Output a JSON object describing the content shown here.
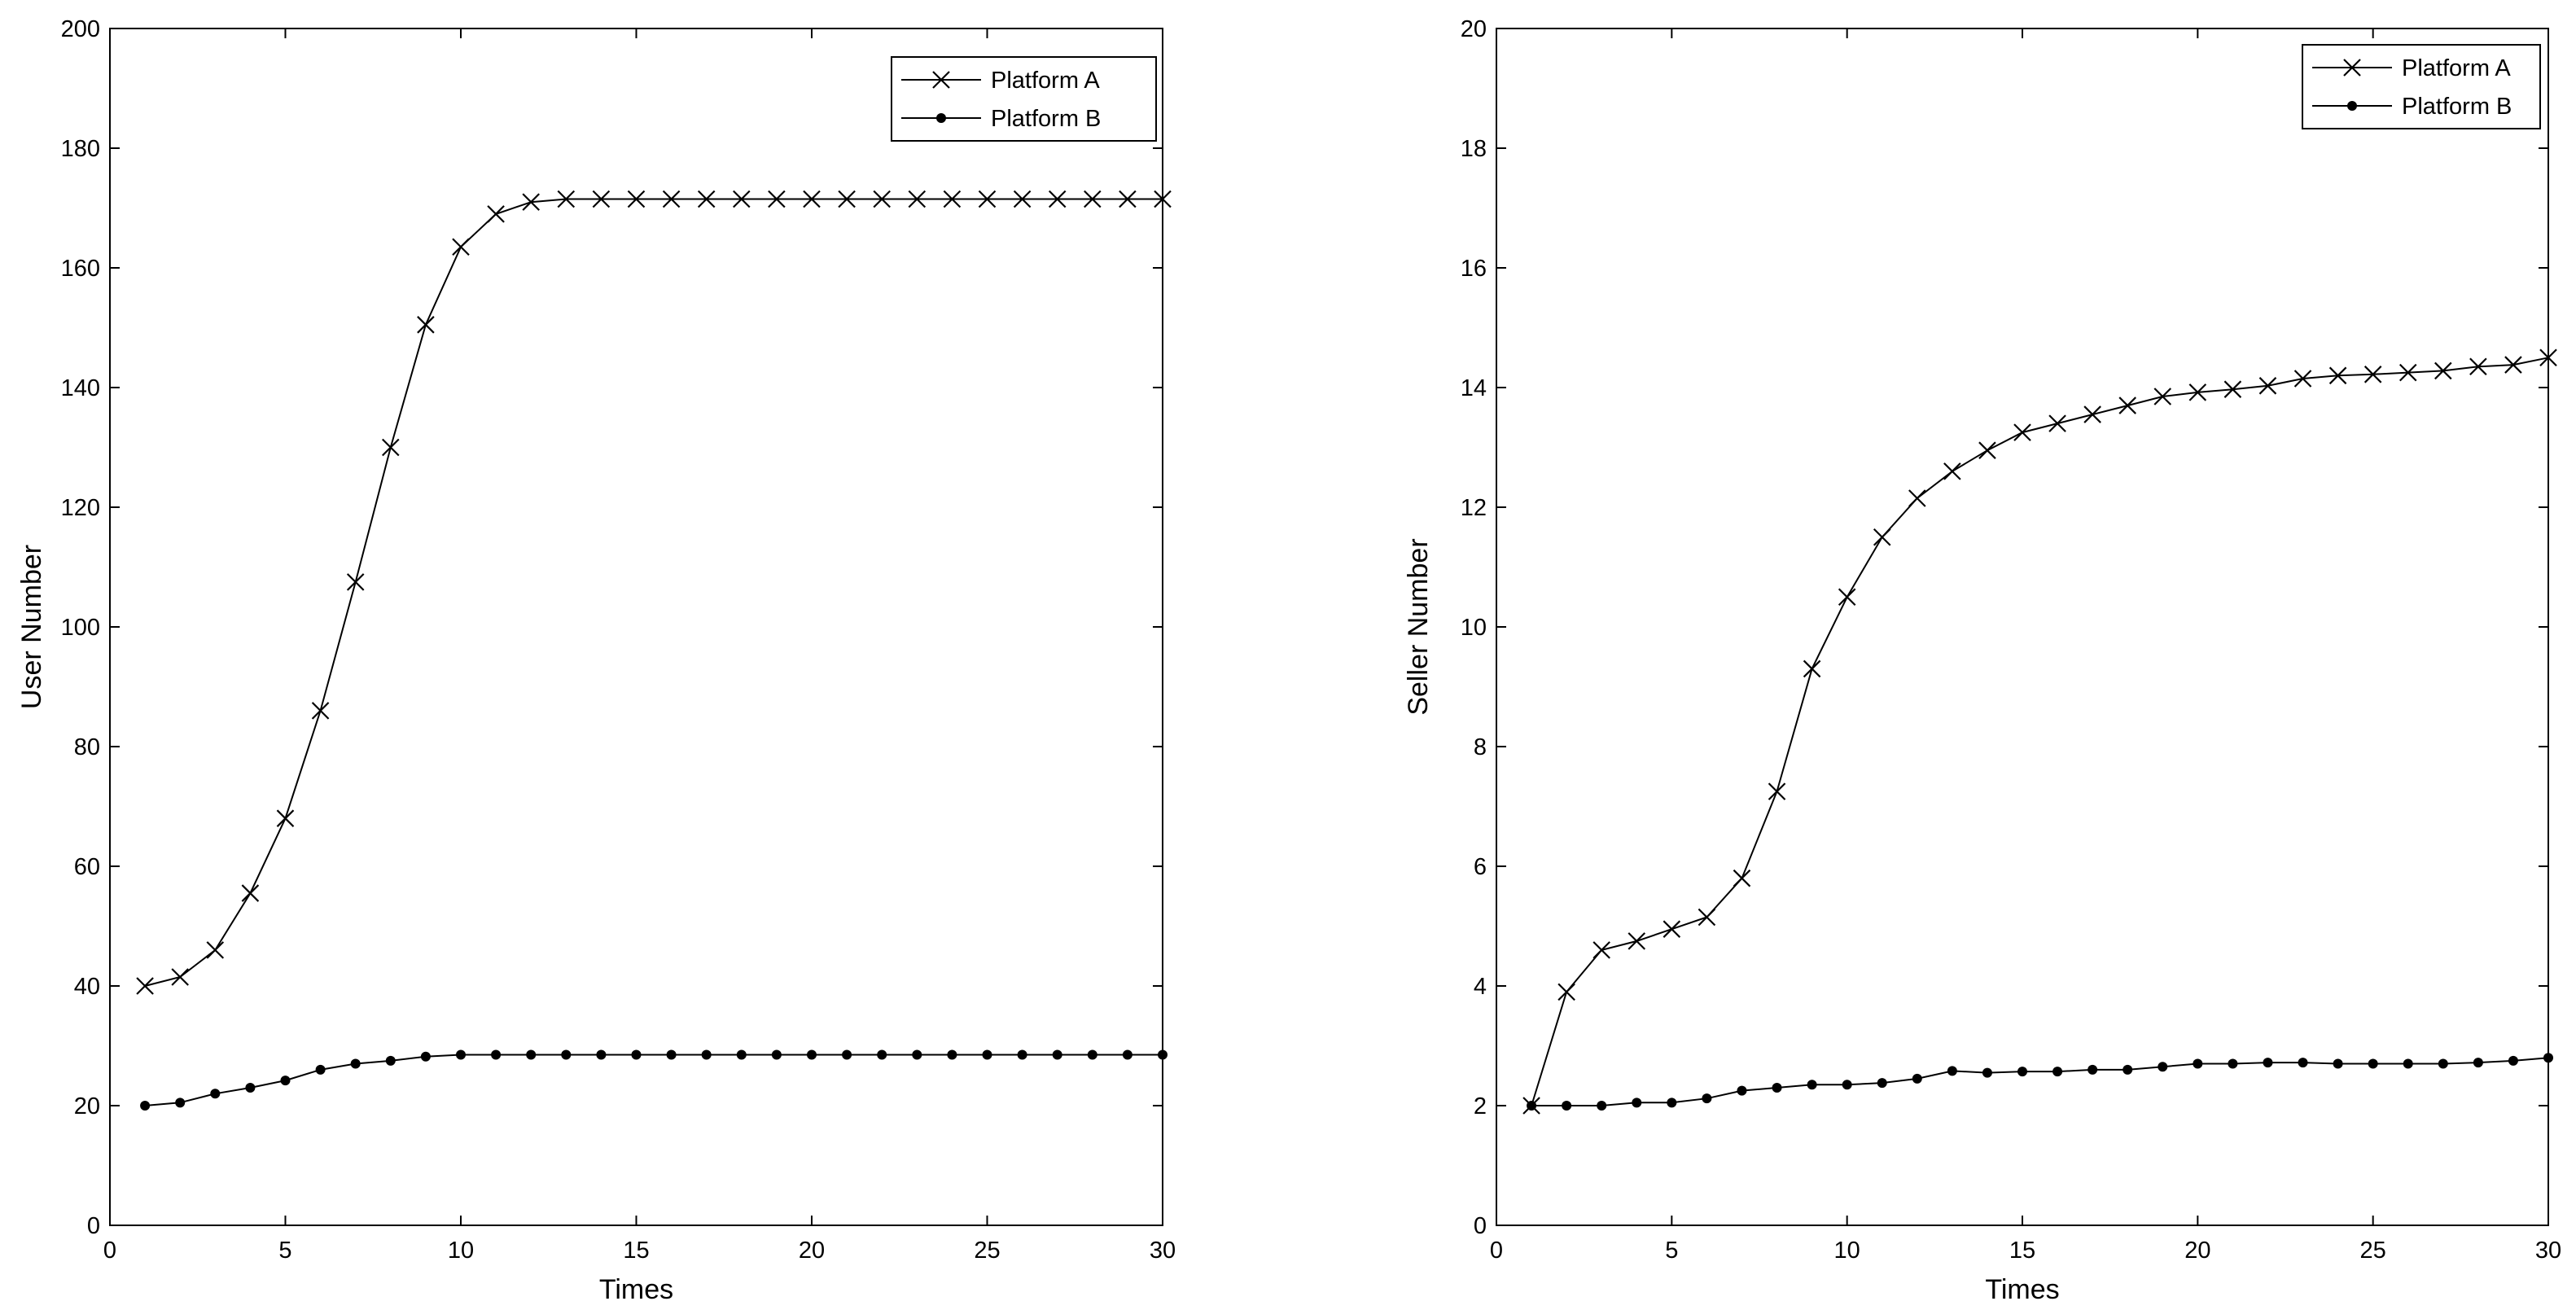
{
  "chart_data": [
    {
      "type": "line",
      "title": "",
      "xlabel": "Times",
      "ylabel": "User Number",
      "xlim": [
        0,
        30
      ],
      "ylim": [
        0,
        200
      ],
      "xticks": [
        0,
        5,
        10,
        15,
        20,
        25,
        30
      ],
      "yticks": [
        0,
        20,
        40,
        60,
        80,
        100,
        120,
        140,
        160,
        180,
        200
      ],
      "grid": false,
      "legend_position": "top-right",
      "x": [
        1,
        2,
        3,
        4,
        5,
        6,
        7,
        8,
        9,
        10,
        11,
        12,
        13,
        14,
        15,
        16,
        17,
        18,
        19,
        20,
        21,
        22,
        23,
        24,
        25,
        26,
        27,
        28,
        29,
        30
      ],
      "series": [
        {
          "name": "Platform A",
          "marker": "x",
          "values": [
            40,
            41.5,
            46,
            55.5,
            68,
            86,
            107.5,
            130,
            150.5,
            163.5,
            169,
            171,
            171.5,
            171.5,
            171.5,
            171.5,
            171.5,
            171.5,
            171.5,
            171.5,
            171.5,
            171.5,
            171.5,
            171.5,
            171.5,
            171.5,
            171.5,
            171.5,
            171.5,
            171.5
          ]
        },
        {
          "name": "Platform B",
          "marker": "dot",
          "values": [
            20,
            20.5,
            22,
            23,
            24.2,
            26,
            27,
            27.5,
            28.2,
            28.5,
            28.5,
            28.5,
            28.5,
            28.5,
            28.5,
            28.5,
            28.5,
            28.5,
            28.5,
            28.5,
            28.5,
            28.5,
            28.5,
            28.5,
            28.5,
            28.5,
            28.5,
            28.5,
            28.5,
            28.5
          ]
        }
      ]
    },
    {
      "type": "line",
      "title": "",
      "xlabel": "Times",
      "ylabel": "Seller Number",
      "xlim": [
        0,
        30
      ],
      "ylim": [
        0,
        20
      ],
      "xticks": [
        0,
        5,
        10,
        15,
        20,
        25,
        30
      ],
      "yticks": [
        0,
        2,
        4,
        6,
        8,
        10,
        12,
        14,
        16,
        18,
        20
      ],
      "grid": false,
      "legend_position": "top-right",
      "x": [
        1,
        2,
        3,
        4,
        5,
        6,
        7,
        8,
        9,
        10,
        11,
        12,
        13,
        14,
        15,
        16,
        17,
        18,
        19,
        20,
        21,
        22,
        23,
        24,
        25,
        26,
        27,
        28,
        29,
        30
      ],
      "series": [
        {
          "name": "Platform A",
          "marker": "x",
          "values": [
            2,
            3.9,
            4.6,
            4.75,
            4.95,
            5.15,
            5.8,
            7.25,
            9.3,
            10.5,
            11.5,
            12.15,
            12.6,
            12.95,
            13.25,
            13.4,
            13.55,
            13.7,
            13.85,
            13.92,
            13.97,
            14.03,
            14.15,
            14.2,
            14.22,
            14.25,
            14.28,
            14.35,
            14.38,
            14.5
          ]
        },
        {
          "name": "Platform B",
          "marker": "dot",
          "values": [
            2,
            2,
            2,
            2.05,
            2.05,
            2.12,
            2.25,
            2.3,
            2.35,
            2.35,
            2.38,
            2.45,
            2.58,
            2.55,
            2.57,
            2.57,
            2.6,
            2.6,
            2.65,
            2.7,
            2.7,
            2.72,
            2.72,
            2.7,
            2.7,
            2.7,
            2.7,
            2.72,
            2.75,
            2.8
          ]
        }
      ]
    }
  ]
}
